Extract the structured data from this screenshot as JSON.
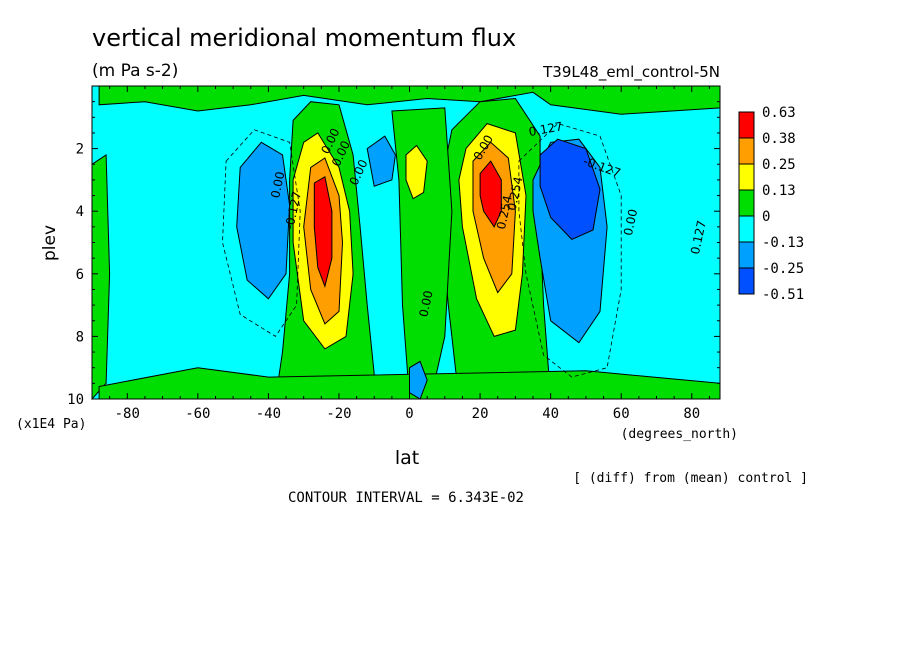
{
  "chart_data": {
    "type": "contour",
    "title": "vertical meridional momentum flux",
    "units": "(m Pa s-2)",
    "dataset": "T39L48_eml_control-5N",
    "xlabel": "lat",
    "x_units": "(degrees_north)",
    "ylabel": "plev",
    "y_units": "(x1E4 Pa)",
    "xlim": [
      -90,
      88
    ],
    "ylim": [
      10,
      0
    ],
    "x_ticks": [
      -80,
      -60,
      -40,
      -20,
      0,
      20,
      40,
      60,
      80
    ],
    "y_ticks": [
      2,
      4,
      6,
      8,
      10
    ],
    "diff_note": "[ (diff) from (mean) control ]",
    "contour_interval": "CONTOUR INTERVAL = 6.343E-02",
    "colorbar": {
      "labels": [
        "0.63",
        "0.38",
        "0.25",
        "0.13",
        "0",
        "-0.13",
        "-0.25",
        "-0.51"
      ],
      "colors": [
        "#ff0000",
        "#ff9e00",
        "#ffff00",
        "#00dd00",
        "#00ffff",
        "#00a0ff",
        "#0050ff"
      ]
    },
    "contour_labels": [
      "0.00",
      "-0.127",
      "0.00",
      "0.00",
      "0.00",
      "0.00",
      "-0.127",
      "0.127",
      "0.00",
      "0.00",
      "0.127",
      "0.254",
      "0.254"
    ],
    "features": [
      {
        "kind": "positive",
        "lat": -25,
        "plev": 4.2,
        "peak": 0.63
      },
      {
        "kind": "positive",
        "lat": 23,
        "plev": 3.2,
        "peak": 0.63
      },
      {
        "kind": "positive",
        "lat": 2,
        "plev": 2.6,
        "peak": 0.25
      },
      {
        "kind": "negative",
        "lat": -40,
        "plev": 3.6,
        "peak": -0.25
      },
      {
        "kind": "negative",
        "lat": 45,
        "plev": 3.5,
        "peak": -0.51
      },
      {
        "kind": "negative",
        "lat": -8,
        "plev": 2.5,
        "peak": -0.25
      },
      {
        "kind": "negative",
        "lat": 2,
        "plev": 9.2,
        "peak": -0.25
      }
    ]
  }
}
